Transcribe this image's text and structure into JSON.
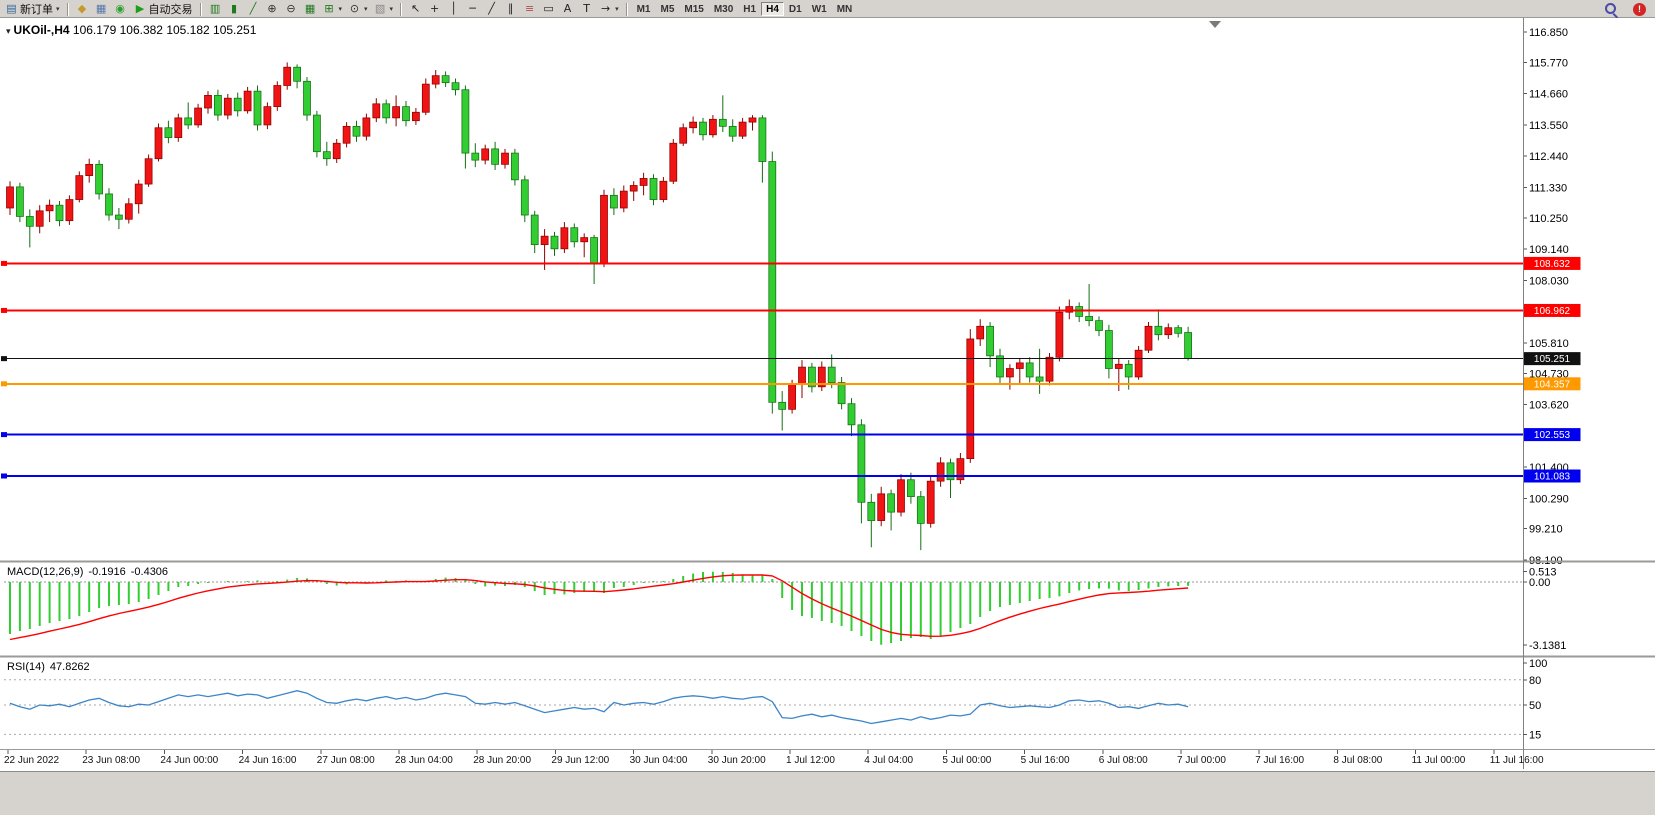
{
  "toolbar": {
    "new_order": {
      "label": "新订单",
      "icon_glyph": "▤",
      "caret": "▾"
    },
    "system_icons": [
      {
        "name": "profile-icon",
        "glyph": "◆",
        "color": "#c49a2a"
      },
      {
        "name": "print-icon",
        "glyph": "▦",
        "color": "#5577aa"
      },
      {
        "name": "globe-icon",
        "glyph": "◉",
        "color": "#2e9e2e"
      }
    ],
    "auto_trading": {
      "label": "自动交易",
      "icon_glyph": "▶",
      "icon_color": "#18a018"
    },
    "chart_icons": [
      {
        "name": "chart-bars-icon",
        "glyph": "▥",
        "color": "#1f7a1f"
      },
      {
        "name": "chart-candles-icon",
        "glyph": "▮",
        "color": "#1f7a1f"
      },
      {
        "name": "chart-line-icon",
        "glyph": "╱",
        "color": "#1f7a1f"
      },
      {
        "name": "zoom-in-icon",
        "glyph": "⊕",
        "color": "#333333"
      },
      {
        "name": "zoom-out-icon",
        "glyph": "⊖",
        "color": "#333333"
      },
      {
        "name": "tile-windows-icon",
        "glyph": "▦",
        "color": "#1f7a1f"
      },
      {
        "name": "indicators-icon",
        "glyph": "⊞",
        "color": "#1f7a1f",
        "caret": true
      },
      {
        "name": "periods-icon",
        "glyph": "⊙",
        "color": "#333333",
        "caret": true
      },
      {
        "name": "templates-icon",
        "glyph": "▧",
        "color": "#888888",
        "caret": true
      }
    ],
    "draw_icons": [
      {
        "name": "cursor-icon",
        "glyph": "↖",
        "color": "#222222"
      },
      {
        "name": "crosshair-icon",
        "glyph": "+",
        "color": "#222222"
      },
      {
        "name": "vertical-line-icon",
        "glyph": "│",
        "color": "#222222"
      },
      {
        "name": "horizontal-line-icon",
        "glyph": "─",
        "color": "#222222"
      },
      {
        "name": "trendline-icon",
        "glyph": "╱",
        "color": "#222222"
      },
      {
        "name": "channel-icon",
        "glyph": "∥",
        "color": "#222222"
      },
      {
        "name": "fibonacci-icon",
        "glyph": "≡",
        "color": "#b05050"
      },
      {
        "name": "shapes-icon",
        "glyph": "▭",
        "color": "#222222"
      },
      {
        "name": "text-icon",
        "glyph": "A",
        "color": "#222222"
      },
      {
        "name": "text-label-icon",
        "glyph": "T",
        "color": "#222222"
      },
      {
        "name": "arrows-icon",
        "glyph": "→",
        "color": "#222222",
        "caret": true
      }
    ],
    "timeframes": [
      {
        "label": "M1"
      },
      {
        "label": "M5"
      },
      {
        "label": "M15"
      },
      {
        "label": "M30"
      },
      {
        "label": "H1"
      },
      {
        "label": "H4",
        "active": true
      },
      {
        "label": "D1"
      },
      {
        "label": "W1"
      },
      {
        "label": "MN"
      }
    ],
    "right_icons": [
      {
        "name": "search-icon",
        "kind": "magnifier"
      },
      {
        "name": "notification-icon",
        "kind": "badge",
        "glyph": "!"
      }
    ]
  },
  "chart": {
    "title": {
      "expand_icon": "▾",
      "symbol_period": "UKOil-,H4",
      "ohlc": "106.179 106.382 105.182 105.251"
    }
  },
  "chart_data": {
    "type": "candlestick",
    "symbol": "UKOil-",
    "period": "H4",
    "ohlc_current": {
      "open": 106.179,
      "high": 106.382,
      "low": 105.182,
      "close": 105.251
    },
    "up_color": "#f01414",
    "down_color": "#32cd32",
    "price_axis": {
      "min": 98.1,
      "max": 116.85,
      "labels": [
        116.85,
        115.77,
        114.66,
        113.55,
        112.44,
        111.33,
        110.25,
        109.14,
        108.03,
        105.81,
        104.73,
        103.62,
        101.4,
        100.29,
        99.21,
        98.1
      ]
    },
    "levels": [
      {
        "price": 108.632,
        "label": "108.632",
        "color": "#ff0000",
        "width": 2
      },
      {
        "price": 106.962,
        "label": "106.962",
        "color": "#ff0000",
        "width": 2
      },
      {
        "price": 105.251,
        "label": "105.251",
        "color": "#111111",
        "width": 1
      },
      {
        "price": 104.357,
        "label": "104.357",
        "color": "#ff9900",
        "width": 2
      },
      {
        "price": 102.553,
        "label": "102.553",
        "color": "#0000ee",
        "width": 2
      },
      {
        "price": 101.083,
        "label": "101.083",
        "color": "#0000ee",
        "width": 2
      }
    ],
    "candles": [
      [
        110.6,
        111.55,
        110.35,
        111.35
      ],
      [
        111.35,
        111.5,
        110.1,
        110.3
      ],
      [
        110.3,
        110.55,
        109.2,
        109.95
      ],
      [
        109.95,
        110.7,
        109.7,
        110.5
      ],
      [
        110.5,
        110.9,
        110.1,
        110.7
      ],
      [
        110.7,
        110.85,
        109.95,
        110.15
      ],
      [
        110.15,
        111.05,
        110.0,
        110.9
      ],
      [
        110.9,
        111.9,
        110.8,
        111.75
      ],
      [
        111.75,
        112.35,
        111.5,
        112.15
      ],
      [
        112.15,
        112.3,
        110.9,
        111.1
      ],
      [
        111.1,
        111.3,
        110.15,
        110.35
      ],
      [
        110.35,
        110.6,
        109.85,
        110.2
      ],
      [
        110.2,
        110.95,
        110.05,
        110.75
      ],
      [
        110.75,
        111.6,
        110.4,
        111.45
      ],
      [
        111.45,
        112.5,
        111.35,
        112.35
      ],
      [
        112.35,
        113.6,
        112.25,
        113.45
      ],
      [
        113.45,
        113.7,
        112.9,
        113.1
      ],
      [
        113.1,
        113.95,
        112.95,
        113.8
      ],
      [
        113.8,
        114.35,
        113.4,
        113.55
      ],
      [
        113.55,
        114.3,
        113.45,
        114.15
      ],
      [
        114.15,
        114.75,
        113.95,
        114.6
      ],
      [
        114.6,
        114.8,
        113.7,
        113.9
      ],
      [
        113.9,
        114.65,
        113.75,
        114.5
      ],
      [
        114.5,
        114.7,
        113.85,
        114.05
      ],
      [
        114.05,
        114.9,
        113.95,
        114.75
      ],
      [
        114.75,
        114.95,
        113.35,
        113.55
      ],
      [
        113.55,
        114.35,
        113.4,
        114.2
      ],
      [
        114.2,
        115.1,
        114.05,
        114.95
      ],
      [
        114.95,
        115.77,
        114.8,
        115.6
      ],
      [
        115.6,
        115.7,
        114.85,
        115.1
      ],
      [
        115.1,
        115.25,
        113.7,
        113.9
      ],
      [
        113.9,
        114.05,
        112.4,
        112.6
      ],
      [
        112.6,
        112.95,
        112.1,
        112.35
      ],
      [
        112.35,
        113.05,
        112.2,
        112.9
      ],
      [
        112.9,
        113.65,
        112.75,
        113.5
      ],
      [
        113.5,
        113.7,
        112.95,
        113.15
      ],
      [
        113.15,
        113.95,
        113.0,
        113.8
      ],
      [
        113.8,
        114.5,
        113.65,
        114.3
      ],
      [
        114.3,
        114.45,
        113.6,
        113.8
      ],
      [
        113.8,
        114.6,
        113.5,
        114.2
      ],
      [
        114.2,
        114.4,
        113.5,
        113.7
      ],
      [
        113.7,
        114.15,
        113.55,
        114.0
      ],
      [
        114.0,
        115.2,
        113.9,
        115.0
      ],
      [
        115.0,
        115.5,
        114.85,
        115.3
      ],
      [
        115.3,
        115.45,
        114.9,
        115.05
      ],
      [
        115.05,
        115.2,
        114.6,
        114.8
      ],
      [
        114.8,
        114.95,
        112.0,
        112.55
      ],
      [
        112.55,
        112.9,
        112.05,
        112.3
      ],
      [
        112.3,
        112.85,
        112.15,
        112.7
      ],
      [
        112.7,
        112.95,
        111.95,
        112.15
      ],
      [
        112.15,
        112.7,
        112.0,
        112.55
      ],
      [
        112.55,
        112.7,
        111.4,
        111.6
      ],
      [
        111.6,
        111.75,
        110.1,
        110.35
      ],
      [
        110.35,
        110.5,
        109.0,
        109.3
      ],
      [
        109.3,
        109.85,
        108.4,
        109.6
      ],
      [
        109.6,
        109.75,
        108.9,
        109.15
      ],
      [
        109.15,
        110.1,
        109.0,
        109.9
      ],
      [
        109.9,
        110.05,
        109.2,
        109.4
      ],
      [
        109.4,
        109.7,
        108.85,
        109.55
      ],
      [
        109.55,
        109.65,
        107.9,
        108.65
      ],
      [
        108.65,
        111.25,
        108.5,
        111.05
      ],
      [
        111.05,
        111.3,
        110.35,
        110.6
      ],
      [
        110.6,
        111.4,
        110.45,
        111.2
      ],
      [
        111.2,
        111.55,
        110.85,
        111.4
      ],
      [
        111.4,
        111.85,
        111.05,
        111.65
      ],
      [
        111.65,
        111.8,
        110.7,
        110.9
      ],
      [
        110.9,
        111.7,
        110.8,
        111.55
      ],
      [
        111.55,
        113.05,
        111.45,
        112.9
      ],
      [
        112.9,
        113.6,
        112.8,
        113.45
      ],
      [
        113.45,
        113.85,
        113.25,
        113.65
      ],
      [
        113.65,
        113.8,
        113.0,
        113.2
      ],
      [
        113.2,
        113.9,
        113.1,
        113.75
      ],
      [
        113.75,
        114.6,
        113.3,
        113.5
      ],
      [
        113.5,
        113.75,
        112.95,
        113.15
      ],
      [
        113.15,
        113.8,
        113.05,
        113.65
      ],
      [
        113.65,
        113.9,
        113.35,
        113.8
      ],
      [
        113.8,
        113.9,
        111.5,
        112.25
      ],
      [
        112.25,
        112.6,
        103.3,
        103.7
      ],
      [
        103.7,
        104.1,
        102.7,
        103.45
      ],
      [
        103.45,
        104.5,
        103.3,
        104.35
      ],
      [
        104.35,
        105.2,
        103.85,
        104.95
      ],
      [
        104.95,
        105.1,
        104.05,
        104.25
      ],
      [
        104.25,
        105.15,
        104.1,
        104.95
      ],
      [
        104.95,
        105.4,
        104.2,
        104.4
      ],
      [
        104.4,
        104.6,
        103.45,
        103.65
      ],
      [
        103.65,
        103.85,
        102.5,
        102.9
      ],
      [
        102.9,
        103.1,
        99.4,
        100.15
      ],
      [
        100.15,
        100.45,
        98.55,
        99.5
      ],
      [
        99.5,
        100.7,
        99.3,
        100.45
      ],
      [
        100.45,
        100.6,
        99.15,
        99.8
      ],
      [
        99.8,
        101.15,
        99.65,
        100.95
      ],
      [
        100.95,
        101.2,
        100.1,
        100.35
      ],
      [
        100.35,
        100.55,
        98.45,
        99.4
      ],
      [
        99.4,
        101.1,
        99.25,
        100.9
      ],
      [
        100.9,
        101.75,
        100.7,
        101.55
      ],
      [
        101.55,
        101.7,
        100.3,
        100.95
      ],
      [
        100.95,
        101.9,
        100.8,
        101.7
      ],
      [
        101.7,
        106.3,
        101.55,
        105.95
      ],
      [
        105.95,
        106.65,
        105.7,
        106.4
      ],
      [
        106.4,
        106.55,
        104.95,
        105.35
      ],
      [
        105.35,
        105.6,
        104.35,
        104.6
      ],
      [
        104.6,
        105.05,
        104.15,
        104.9
      ],
      [
        104.9,
        105.25,
        104.35,
        105.1
      ],
      [
        105.1,
        105.3,
        104.4,
        104.6
      ],
      [
        104.6,
        105.6,
        104.0,
        104.45
      ],
      [
        104.45,
        105.45,
        104.3,
        105.3
      ],
      [
        105.3,
        107.1,
        105.15,
        106.9
      ],
      [
        106.9,
        107.35,
        106.65,
        107.1
      ],
      [
        107.1,
        107.25,
        106.55,
        106.75
      ],
      [
        106.75,
        107.9,
        106.4,
        106.6
      ],
      [
        106.6,
        106.75,
        106.05,
        106.25
      ],
      [
        106.25,
        106.45,
        104.55,
        104.9
      ],
      [
        104.9,
        105.25,
        104.1,
        105.05
      ],
      [
        105.05,
        105.2,
        104.15,
        104.6
      ],
      [
        104.6,
        105.7,
        104.5,
        105.55
      ],
      [
        105.55,
        106.55,
        105.45,
        106.4
      ],
      [
        106.4,
        107.0,
        105.9,
        106.1
      ],
      [
        106.1,
        106.5,
        105.95,
        106.35
      ],
      [
        106.35,
        106.45,
        106.0,
        106.15
      ],
      [
        106.179,
        106.382,
        105.182,
        105.251
      ]
    ],
    "time_axis": [
      "22 Jun 2022",
      "23 Jun 08:00",
      "24 Jun 00:00",
      "24 Jun 16:00",
      "27 Jun 08:00",
      "28 Jun 04:00",
      "28 Jun 20:00",
      "29 Jun 12:00",
      "30 Jun 04:00",
      "30 Jun 20:00",
      "1 Jul 12:00",
      "4 Jul 04:00",
      "5 Jul 00:00",
      "5 Jul 16:00",
      "6 Jul 08:00",
      "7 Jul 00:00",
      "7 Jul 16:00",
      "8 Jul 08:00",
      "11 Jul 00:00",
      "11 Jul 16:00"
    ],
    "macd": {
      "title": "MACD(12,26,9)",
      "value_main": "-0.1916",
      "value_signal": "-0.4306",
      "hist_color": "#32cd32",
      "signal_color": "#ff0000",
      "axis": [
        {
          "v": 0.513,
          "label": "0.513"
        },
        {
          "v": 0.0,
          "label": "0.00"
        },
        {
          "v": -3.1381,
          "label": "-3.1381"
        }
      ],
      "hist": [
        -2.6,
        -2.45,
        -2.35,
        -2.2,
        -2.05,
        -1.95,
        -1.85,
        -1.7,
        -1.5,
        -1.3,
        -1.2,
        -1.15,
        -1.1,
        -1.0,
        -0.85,
        -0.65,
        -0.45,
        -0.25,
        -0.2,
        -0.1,
        -0.05,
        0.0,
        0.05,
        0.02,
        0.05,
        0.08,
        0.02,
        0.05,
        0.12,
        0.2,
        0.18,
        0.05,
        -0.1,
        -0.18,
        -0.12,
        -0.05,
        -0.08,
        0.0,
        0.08,
        0.05,
        0.08,
        0.03,
        0.05,
        0.15,
        0.22,
        0.2,
        0.12,
        -0.1,
        -0.22,
        -0.18,
        -0.2,
        -0.15,
        -0.25,
        -0.45,
        -0.65,
        -0.6,
        -0.62,
        -0.55,
        -0.5,
        -0.48,
        -0.55,
        -0.3,
        -0.25,
        -0.15,
        -0.05,
        0.05,
        0.05,
        0.15,
        0.3,
        0.42,
        0.5,
        0.513,
        0.5,
        0.45,
        0.38,
        0.35,
        0.35,
        0.15,
        -0.8,
        -1.4,
        -1.7,
        -1.8,
        -1.95,
        -2.05,
        -2.2,
        -2.45,
        -2.7,
        -2.95,
        -3.1381,
        -3.05,
        -2.95,
        -2.8,
        -2.75,
        -2.85,
        -2.7,
        -2.5,
        -2.3,
        -2.1,
        -1.75,
        -1.45,
        -1.25,
        -1.15,
        -1.05,
        -0.95,
        -0.85,
        -0.8,
        -0.72,
        -0.55,
        -0.42,
        -0.35,
        -0.32,
        -0.33,
        -0.42,
        -0.45,
        -0.4,
        -0.32,
        -0.25,
        -0.22,
        -0.2,
        -0.1916
      ]
    },
    "rsi": {
      "title": "RSI(14)",
      "value": "47.8262",
      "color": "#3d85c8",
      "levels": [
        80,
        50,
        15
      ],
      "axis": [
        {
          "v": 100,
          "label": "100"
        },
        {
          "v": 80,
          "label": "80"
        },
        {
          "v": 50,
          "label": "50"
        },
        {
          "v": 15,
          "label": "15"
        }
      ],
      "values": [
        52,
        48,
        45,
        50,
        49,
        51,
        48,
        52,
        56,
        58,
        53,
        49,
        48,
        51,
        50,
        54,
        58,
        62,
        60,
        62,
        60,
        62,
        64,
        61,
        63,
        62,
        58,
        61,
        64,
        67,
        64,
        58,
        53,
        52,
        55,
        57,
        55,
        58,
        60,
        57,
        59,
        56,
        58,
        62,
        64,
        62,
        60,
        52,
        51,
        53,
        51,
        53,
        49,
        45,
        41,
        43,
        45,
        47,
        45,
        46,
        42,
        53,
        50,
        52,
        53,
        51,
        54,
        58,
        60,
        61,
        60,
        58,
        60,
        58,
        57,
        59,
        60,
        54,
        35,
        34,
        37,
        39,
        36,
        38,
        35,
        33,
        31,
        28,
        30,
        32,
        34,
        32,
        36,
        33,
        35,
        38,
        37,
        39,
        50,
        52,
        49,
        47,
        48,
        49,
        48,
        47,
        50,
        55,
        56,
        54,
        55,
        52,
        47,
        48,
        46,
        49,
        52,
        50,
        51,
        47.83
      ]
    }
  }
}
